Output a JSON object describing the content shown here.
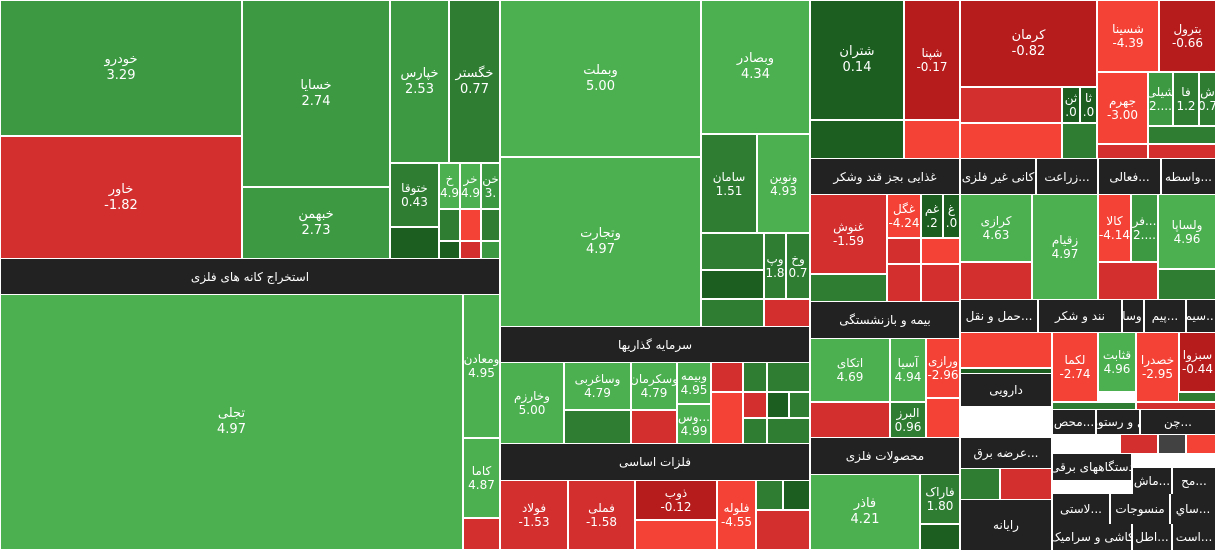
{
  "colors": {
    "pos_strong": "#4caf50",
    "pos_mid": "#3d9a43",
    "pos_low": "#2e7d32",
    "pos_dark": "#1b5e20",
    "neg_strong": "#f44336",
    "neg_mid": "#d32f2f",
    "neg_dark": "#b71c1c",
    "neutral": "#424242",
    "header_bg": "#222222"
  },
  "chart_data": {
    "type": "treemap",
    "sectors": [
      "استخراج کانه های فلزی",
      "سرمایه گذاریها",
      "فلزات اساسی",
      "غذایی بجز قند وشکر",
      "کانی غیر فلزی",
      "زراعت...",
      "فعالی...",
      "واسطه...",
      "بیمه و بازنشستگی",
      "حمل و نقل...",
      "نند و شکر",
      "وسای...",
      "سیم...",
      "پیم...",
      "دارویی",
      "محصولات فلزی",
      "عرضه برق...",
      "رایانه",
      "محص...",
      "هتل و رستوران",
      "چن...",
      "دستگاههای برقی",
      "ماش...",
      "مح...",
      "منسوجات",
      "ساي...",
      "لاستی...",
      "کاشی و سرامیک",
      "اطل...",
      "است..."
    ],
    "stocks": [
      {
        "symbol": "خودرو",
        "change": "3.29"
      },
      {
        "symbol": "خاور",
        "change": "-1.82"
      },
      {
        "symbol": "خسایا",
        "change": "2.74"
      },
      {
        "symbol": "خبهمن",
        "change": "2.73"
      },
      {
        "symbol": "خپارس",
        "change": "2.53"
      },
      {
        "symbol": "خگستر",
        "change": "0.77"
      },
      {
        "symbol": "ختوقا",
        "change": "0.43"
      },
      {
        "symbol": "خ",
        "change": "4.9"
      },
      {
        "symbol": "خر",
        "change": "4.9"
      },
      {
        "symbol": "خن",
        "change": "3."
      },
      {
        "symbol": "تجلی",
        "change": "4.97"
      },
      {
        "symbol": "ومعادن",
        "change": "4.95"
      },
      {
        "symbol": "کاما",
        "change": "4.87"
      },
      {
        "symbol": "وبملت",
        "change": "5.00"
      },
      {
        "symbol": "وبصادر",
        "change": "4.34"
      },
      {
        "symbol": "وتجارت",
        "change": "4.97"
      },
      {
        "symbol": "سامان",
        "change": "1.51"
      },
      {
        "symbol": "ونوین",
        "change": "4.93"
      },
      {
        "symbol": "وپ",
        "change": "1.8"
      },
      {
        "symbol": "وخ",
        "change": "0.7"
      },
      {
        "symbol": "وخارزم",
        "change": "5.00"
      },
      {
        "symbol": "وساغربی",
        "change": "4.79"
      },
      {
        "symbol": "وسکرمان",
        "change": "4.79"
      },
      {
        "symbol": "وبیمه",
        "change": "4.95"
      },
      {
        "symbol": "وس...",
        "change": "4.99"
      },
      {
        "symbol": "فولاد",
        "change": "-1.53"
      },
      {
        "symbol": "فملی",
        "change": "-1.58"
      },
      {
        "symbol": "ذوب",
        "change": "-0.12"
      },
      {
        "symbol": "فلوله",
        "change": "-4.55"
      },
      {
        "symbol": "شتران",
        "change": "0.14"
      },
      {
        "symbol": "شپنا",
        "change": "-0.17"
      },
      {
        "symbol": "کرمان",
        "change": "-0.82"
      },
      {
        "symbol": "شسینا",
        "change": "-4.39"
      },
      {
        "symbol": "بترول",
        "change": "-0.66"
      },
      {
        "symbol": "ثن",
        "change": ".0"
      },
      {
        "symbol": "ثا",
        "change": ".0"
      },
      {
        "symbol": "جهرم",
        "change": "-3.00"
      },
      {
        "symbol": "شیلی",
        "change": "2...."
      },
      {
        "symbol": "فا",
        "change": "1.2"
      },
      {
        "symbol": "ش",
        "change": "0.7"
      },
      {
        "symbol": "غنوش",
        "change": "-1.59"
      },
      {
        "symbol": "غگل",
        "change": "-4.24"
      },
      {
        "symbol": "غم",
        "change": ".2"
      },
      {
        "symbol": "غ",
        "change": ".0"
      },
      {
        "symbol": "کرازی",
        "change": "4.63"
      },
      {
        "symbol": "زقیام",
        "change": "4.97"
      },
      {
        "symbol": "کالا",
        "change": "-4.14"
      },
      {
        "symbol": "فر...",
        "change": "2...."
      },
      {
        "symbol": "ولساپا",
        "change": "4.96"
      },
      {
        "symbol": "اتکای",
        "change": "4.69"
      },
      {
        "symbol": "آسیا",
        "change": "4.94"
      },
      {
        "symbol": "ورازی",
        "change": "-2.96"
      },
      {
        "symbol": "البرز",
        "change": "0.96"
      },
      {
        "symbol": "لکما",
        "change": "-2.74"
      },
      {
        "symbol": "قثابت",
        "change": "4.96"
      },
      {
        "symbol": "خصدرا",
        "change": "-2.95"
      },
      {
        "symbol": "سبزوا",
        "change": "-0.44"
      },
      {
        "symbol": "فاذر",
        "change": "4.21"
      },
      {
        "symbol": "فاراک",
        "change": "1.80"
      }
    ]
  }
}
